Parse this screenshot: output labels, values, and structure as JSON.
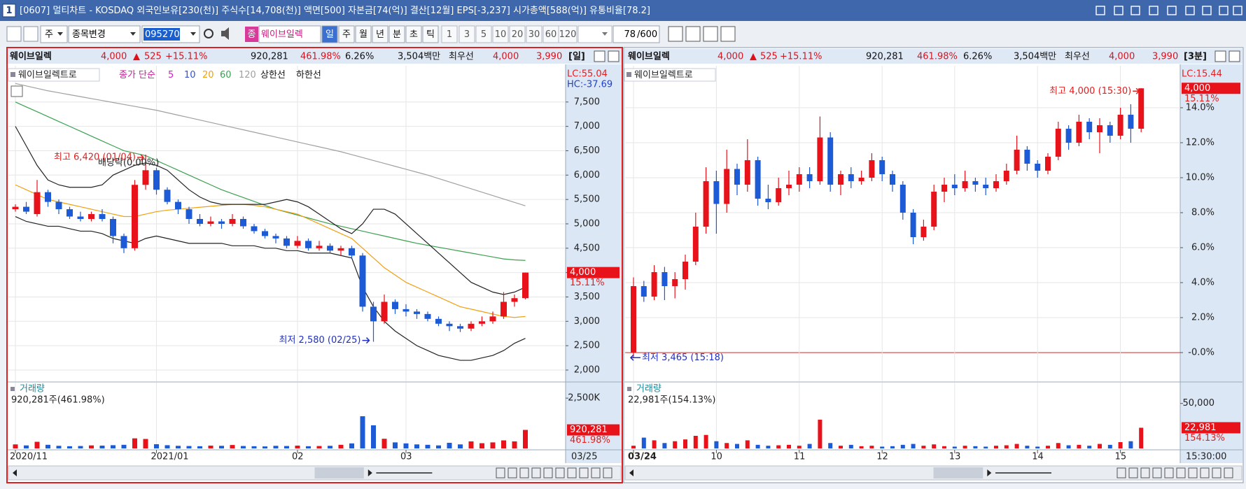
{
  "window": {
    "number": "1",
    "title": "[0607] 멀티차트 - KOSDAQ 외국인보유[230(천)] 주식수[14,708(천)] 액면[500] 자본금[74(억)] 결산[12월] EPS[-3,237] 시가총액[588(억)] 유통비율[78.2]"
  },
  "toolbar": {
    "market": "주",
    "search_action": "종목변경",
    "code": "095270",
    "badge": "종",
    "stock_name": "웨이브일렉",
    "periods": [
      "일",
      "주",
      "월",
      "년",
      "분",
      "초",
      "틱"
    ],
    "counts": [
      "1",
      "3",
      "5",
      "10",
      "20",
      "30",
      "60",
      "120"
    ],
    "count_value": "78",
    "count_max": "/600"
  },
  "left": {
    "header": {
      "name": "웨이브일렉",
      "price": "4,000",
      "arrow": "▲",
      "change": "525",
      "change_pct": "+15.11%",
      "volume": "920,281",
      "volume_ratio": "461.98%",
      "turnover": "6.26%",
      "amount": "3,504백만",
      "quote_label": "최우선",
      "ask": "4,000",
      "bid": "3,990",
      "period": "[일]"
    },
    "price": {
      "type": "candlestick",
      "legend": {
        "name": "웨이브일렉트로",
        "ma_label": "종가 단순",
        "ma_periods": [
          {
            "label": "5",
            "color": "#d020c0"
          },
          {
            "label": "10",
            "color": "#3050e0"
          },
          {
            "label": "20",
            "color": "#f0a010"
          },
          {
            "label": "60",
            "color": "#3aa050"
          },
          {
            "label": "120",
            "color": "#a0a0a0"
          }
        ],
        "limit_up": "상한선",
        "limit_down": "하한선"
      },
      "lc": "LC:55.04",
      "hc": "HC:-37.69",
      "high_note": "최고 6,420 (01/04)",
      "ex_div_note": "배당락(0.00%)",
      "low_note": "최저 2,580 (02/25)",
      "last_label": "4,000",
      "last_pct": "15.11%",
      "ylim": [
        1770,
        8100
      ],
      "yticks": [
        {
          "value": 2000,
          "label": "2,000"
        },
        {
          "value": 2500,
          "label": "2,500"
        },
        {
          "value": 3000,
          "label": "3,000"
        },
        {
          "value": 3500,
          "label": "3,500"
        },
        {
          "value": 4000,
          "label": "4,000"
        },
        {
          "value": 4500,
          "label": "4,500"
        },
        {
          "value": 5000,
          "label": "5,000"
        },
        {
          "value": 5500,
          "label": "5,500"
        },
        {
          "value": 6000,
          "label": "6,000"
        },
        {
          "value": 6500,
          "label": "6,500"
        },
        {
          "value": 7000,
          "label": "7,000"
        },
        {
          "value": 7500,
          "label": "7,500"
        }
      ],
      "categories": [
        "2020/11",
        null,
        null,
        null,
        null,
        null,
        null,
        null,
        null,
        null,
        null,
        null,
        null,
        "2021/01",
        null,
        null,
        null,
        null,
        null,
        null,
        null,
        null,
        null,
        null,
        null,
        null,
        "02",
        null,
        null,
        null,
        null,
        null,
        null,
        null,
        null,
        null,
        "03",
        null,
        null,
        null,
        null,
        null,
        null,
        null,
        null,
        null,
        null,
        null
      ],
      "open": [
        5300,
        5350,
        5200,
        5650,
        5450,
        5300,
        5150,
        5100,
        5200,
        5100,
        4750,
        4500,
        5800,
        6100,
        5700,
        5450,
        5300,
        5100,
        5000,
        5050,
        5000,
        5100,
        4950,
        4850,
        4750,
        4700,
        4550,
        4650,
        4500,
        4550,
        4450,
        4500,
        4350,
        3300,
        3000,
        3400,
        3250,
        3200,
        3150,
        3050,
        2950,
        2900,
        2850,
        2950,
        3000,
        3100,
        3400,
        3475
      ],
      "close": [
        5350,
        5250,
        5650,
        5450,
        5300,
        5150,
        5100,
        5200,
        5100,
        4750,
        4500,
        5800,
        6100,
        5700,
        5450,
        5300,
        5100,
        5000,
        5050,
        5000,
        5100,
        4950,
        4850,
        4750,
        4700,
        4550,
        4650,
        4500,
        4550,
        4450,
        4500,
        4350,
        3300,
        3000,
        3400,
        3250,
        3200,
        3150,
        3050,
        2950,
        2900,
        2850,
        2950,
        3000,
        3100,
        3400,
        3475,
        4000
      ],
      "high": [
        5400,
        5450,
        5900,
        5700,
        5500,
        5350,
        5250,
        5250,
        5300,
        5150,
        4800,
        5900,
        6420,
        6150,
        5750,
        5500,
        5350,
        5200,
        5150,
        5100,
        5200,
        5150,
        5000,
        4900,
        4800,
        4750,
        4750,
        4700,
        4650,
        4600,
        4550,
        4550,
        4400,
        3400,
        3550,
        3450,
        3350,
        3250,
        3200,
        3100,
        3000,
        2950,
        3000,
        3100,
        3200,
        3600,
        3550,
        4000
      ],
      "low": [
        5250,
        5200,
        5150,
        5350,
        5200,
        5100,
        5050,
        5050,
        5050,
        4600,
        4400,
        4450,
        5700,
        5600,
        5400,
        5200,
        5000,
        4950,
        4950,
        4900,
        4950,
        4900,
        4800,
        4700,
        4600,
        4500,
        4500,
        4450,
        4450,
        4400,
        4350,
        4300,
        3200,
        2580,
        2950,
        3150,
        3100,
        3050,
        3000,
        2900,
        2800,
        2780,
        2800,
        2900,
        2950,
        3050,
        3300,
        3450
      ],
      "up_color": "#e8121a",
      "down_color": "#1c5ad6",
      "lines": [
        {
          "color": "#a0a0a0",
          "values": [
            7880,
            7830,
            7780,
            7730,
            7690,
            7650,
            7610,
            7570,
            7530,
            7490,
            7450,
            7410,
            7370,
            7330,
            7280,
            7230,
            7180,
            7130,
            7080,
            7030,
            6980,
            6930,
            6880,
            6830,
            6780,
            6730,
            6680,
            6630,
            6580,
            6530,
            6480,
            6420,
            6360,
            6300,
            6240,
            6180,
            6120,
            6060,
            6000,
            5930,
            5860,
            5790,
            5720,
            5650,
            5580,
            5510,
            5440,
            5370
          ]
        },
        {
          "color": "#3aa050",
          "values": [
            7500,
            7400,
            7300,
            7200,
            7100,
            7000,
            6900,
            6800,
            6700,
            6600,
            6500,
            6450,
            6400,
            6300,
            6200,
            6100,
            6000,
            5900,
            5800,
            5700,
            5620,
            5540,
            5460,
            5380,
            5300,
            5240,
            5180,
            5120,
            5060,
            5000,
            4950,
            4900,
            4850,
            4800,
            4750,
            4700,
            4650,
            4600,
            4560,
            4520,
            4480,
            4440,
            4400,
            4360,
            4320,
            4280,
            4260,
            4250
          ]
        },
        {
          "color": "#f0a010",
          "values": [
            5800,
            5700,
            5600,
            5500,
            5450,
            5400,
            5350,
            5300,
            5250,
            5200,
            5150,
            5150,
            5200,
            5250,
            5280,
            5300,
            5320,
            5340,
            5360,
            5380,
            5400,
            5400,
            5380,
            5350,
            5300,
            5250,
            5200,
            5100,
            5000,
            4900,
            4800,
            4700,
            4500,
            4300,
            4100,
            3950,
            3800,
            3700,
            3600,
            3500,
            3400,
            3300,
            3250,
            3200,
            3150,
            3100,
            3080,
            3100
          ]
        },
        {
          "color": "#222222",
          "values": [
            7000,
            6600,
            6200,
            5900,
            5800,
            5750,
            5750,
            5750,
            5800,
            6000,
            6100,
            6200,
            6250,
            6200,
            6100,
            5900,
            5700,
            5550,
            5450,
            5400,
            5400,
            5400,
            5400,
            5400,
            5450,
            5500,
            5450,
            5350,
            5200,
            5050,
            4900,
            4800,
            5000,
            5300,
            5300,
            5200,
            5000,
            4800,
            4600,
            4400,
            4200,
            4000,
            3800,
            3700,
            3600,
            3550,
            3600,
            3700
          ]
        },
        {
          "color": "#222222",
          "values": [
            5150,
            5050,
            5000,
            4950,
            4950,
            4900,
            4850,
            4850,
            4800,
            4700,
            4650,
            4600,
            4700,
            4750,
            4700,
            4650,
            4600,
            4600,
            4600,
            4600,
            4550,
            4550,
            4550,
            4500,
            4500,
            4450,
            4450,
            4400,
            4400,
            4400,
            4350,
            4300,
            3700,
            3300,
            3000,
            2800,
            2650,
            2500,
            2400,
            2300,
            2250,
            2200,
            2200,
            2250,
            2300,
            2400,
            2550,
            2650
          ]
        }
      ],
      "grid": true
    },
    "volume": {
      "type": "bar",
      "label": "거래량",
      "summary": "920,281주(461.98%)",
      "last_label": "920,281",
      "last_pct": "461.98%",
      "ylim": [
        0,
        3130000
      ],
      "yticks": [
        {
          "value": 2500000,
          "label": "2,500K"
        }
      ],
      "values": [
        200000,
        150000,
        330000,
        180000,
        130000,
        110000,
        120000,
        150000,
        140000,
        160000,
        180000,
        500000,
        470000,
        210000,
        160000,
        130000,
        120000,
        110000,
        140000,
        130000,
        170000,
        120000,
        110000,
        100000,
        130000,
        120000,
        140000,
        110000,
        120000,
        130000,
        180000,
        250000,
        1600000,
        1150000,
        480000,
        300000,
        250000,
        200000,
        180000,
        150000,
        280000,
        200000,
        350000,
        260000,
        300000,
        400000,
        350000,
        920281
      ]
    },
    "last_time": "03/25"
  },
  "right": {
    "header": {
      "name": "웨이브일렉",
      "price": "4,000",
      "arrow": "▲",
      "change": "525",
      "change_pct": "+15.11%",
      "volume": "920,281",
      "volume_ratio": "461.98%",
      "turnover": "6.26%",
      "amount": "3,504백만",
      "quote_label": "최우선",
      "ask": "4,000",
      "bid": "3,990",
      "period": "[3분]"
    },
    "price": {
      "type": "candlestick",
      "legend": {
        "name": "웨이브일렉트로"
      },
      "lc": "LC:15.44",
      "high_note": "최고 4,000 (15:30)",
      "low_note": "최저 3,465 (15:18)",
      "last_label": "4,000",
      "last_pct": "15.11%",
      "ylim": [
        -1.64,
        16
      ],
      "yticks": [
        {
          "value": 0,
          "label": "-0.0%"
        },
        {
          "value": 2,
          "label": "2.0%"
        },
        {
          "value": 4,
          "label": "4.0%"
        },
        {
          "value": 6,
          "label": "6.0%"
        },
        {
          "value": 8,
          "label": "8.0%"
        },
        {
          "value": 10,
          "label": "10.0%"
        },
        {
          "value": 12,
          "label": "12.0%"
        },
        {
          "value": 14,
          "label": "14.0%"
        }
      ],
      "base_line": true,
      "categories": [
        "03/24",
        null,
        null,
        null,
        null,
        null,
        null,
        null,
        "10",
        null,
        null,
        null,
        null,
        null,
        null,
        null,
        "11",
        null,
        null,
        null,
        null,
        null,
        null,
        null,
        "12",
        null,
        null,
        null,
        null,
        null,
        null,
        "13",
        null,
        null,
        null,
        null,
        null,
        null,
        null,
        "14",
        null,
        null,
        null,
        null,
        null,
        null,
        null,
        "15",
        null,
        null
      ],
      "open": [
        0.0,
        3.8,
        3.2,
        4.6,
        3.8,
        4.2,
        5.2,
        7.2,
        9.8,
        8.5,
        10.5,
        9.6,
        11.0,
        8.8,
        8.6,
        9.4,
        9.6,
        10.2,
        9.8,
        12.3,
        9.6,
        10.2,
        9.8,
        10.0,
        11.0,
        10.2,
        9.6,
        8.0,
        6.6,
        7.2,
        9.2,
        9.6,
        9.4,
        9.8,
        9.6,
        9.4,
        9.8,
        10.4,
        11.6,
        10.8,
        10.4,
        11.2,
        12.8,
        12.0,
        13.2,
        12.6,
        13.0,
        12.4,
        13.6,
        12.8
      ],
      "close": [
        3.8,
        3.2,
        4.6,
        3.8,
        4.2,
        5.2,
        7.2,
        9.8,
        8.5,
        10.5,
        9.6,
        11.0,
        8.8,
        8.6,
        9.4,
        9.6,
        10.2,
        9.8,
        12.3,
        9.6,
        10.2,
        9.8,
        10.0,
        11.0,
        10.2,
        9.6,
        8.0,
        6.6,
        7.2,
        9.2,
        9.6,
        9.4,
        9.8,
        9.6,
        9.4,
        9.8,
        10.4,
        11.6,
        10.8,
        10.4,
        11.2,
        12.8,
        12.0,
        13.2,
        12.6,
        13.0,
        12.4,
        13.6,
        12.8,
        15.11
      ],
      "high": [
        4.3,
        4.1,
        5.0,
        4.9,
        4.6,
        5.6,
        8.0,
        10.6,
        10.4,
        11.6,
        10.8,
        12.2,
        11.2,
        9.6,
        10.0,
        10.4,
        10.6,
        10.6,
        13.5,
        12.6,
        10.4,
        10.6,
        10.4,
        11.4,
        11.2,
        10.4,
        9.8,
        8.2,
        7.6,
        9.6,
        10.0,
        10.2,
        10.4,
        10.0,
        10.0,
        10.2,
        10.8,
        12.4,
        11.8,
        11.0,
        11.4,
        13.2,
        13.0,
        13.6,
        13.4,
        13.4,
        13.2,
        14.0,
        14.2,
        15.11
      ],
      "low": [
        -0.29,
        2.9,
        3.0,
        3.0,
        3.1,
        3.6,
        5.0,
        6.8,
        6.8,
        8.0,
        9.0,
        9.2,
        8.4,
        8.2,
        8.4,
        9.0,
        9.2,
        9.4,
        9.6,
        9.2,
        9.0,
        9.4,
        9.6,
        9.8,
        9.8,
        9.2,
        7.6,
        6.2,
        6.4,
        7.0,
        8.6,
        9.0,
        9.2,
        9.2,
        9.0,
        9.2,
        9.6,
        10.2,
        10.4,
        10.0,
        10.2,
        11.0,
        11.6,
        11.8,
        12.2,
        11.4,
        12.0,
        12.2,
        12.0,
        12.6
      ],
      "up_color": "#e8121a",
      "down_color": "#1c5ad6",
      "lines": [],
      "grid": true
    },
    "volume": {
      "type": "bar",
      "label": "거래량",
      "summary": "22,981주(154.13%)",
      "last_label": "22,981",
      "last_pct": "154.13%",
      "ylim": [
        0,
        70000
      ],
      "yticks": [
        {
          "value": 50000,
          "label": "50,000"
        }
      ],
      "values": [
        3000,
        12000,
        9000,
        6000,
        8000,
        10000,
        14000,
        15000,
        8000,
        6000,
        5000,
        9000,
        4000,
        3000,
        3500,
        4000,
        3000,
        5000,
        32000,
        6000,
        3000,
        4000,
        2500,
        3000,
        2000,
        2500,
        4000,
        5000,
        3000,
        4500,
        2500,
        2000,
        3000,
        2500,
        2000,
        3000,
        3500,
        5000,
        3000,
        2000,
        3000,
        6000,
        3500,
        4000,
        3000,
        5000,
        4000,
        7000,
        8000,
        22981
      ]
    },
    "last_time": "15:30:00"
  }
}
